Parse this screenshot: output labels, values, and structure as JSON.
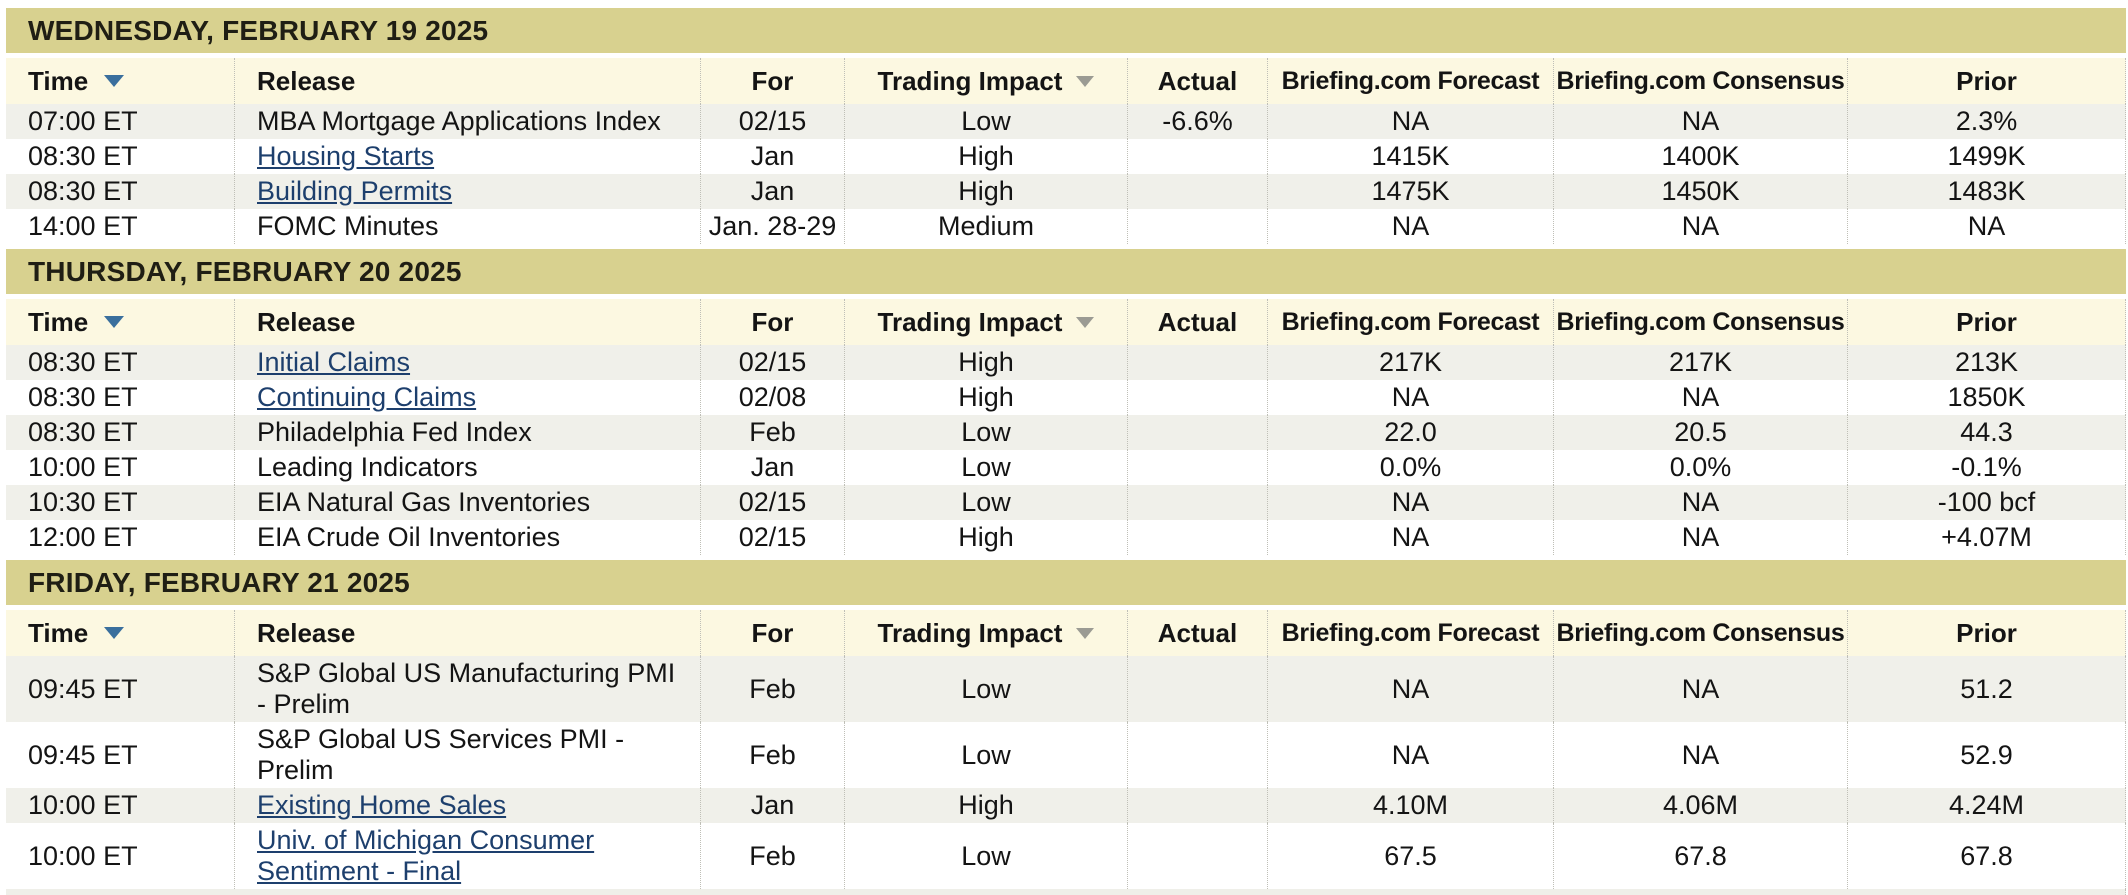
{
  "colors": {
    "date_band_bg": "#d8d18f",
    "header_row_bg": "#fcf8e1",
    "row_alt_bg": "#f0f0ea",
    "row_bg": "#ffffff",
    "text": "#141414",
    "link": "#1d3f6d",
    "time_sort_arrow": "#3a6f9d",
    "impact_sort_arrow": "#9b9b93",
    "column_divider": "#bfbfb7"
  },
  "icons": {
    "time_sort": "down-triangle",
    "impact_sort": "down-triangle"
  },
  "table": {
    "columns": [
      {
        "key": "time",
        "label": "Time",
        "sortable": true,
        "arrow": "blue"
      },
      {
        "key": "release",
        "label": "Release",
        "sortable": false
      },
      {
        "key": "for",
        "label": "For",
        "sortable": false
      },
      {
        "key": "impact",
        "label": "Trading Impact",
        "sortable": true,
        "arrow": "gray"
      },
      {
        "key": "actual",
        "label": "Actual",
        "sortable": false
      },
      {
        "key": "forecast",
        "label": "Briefing.com Forecast",
        "sortable": false
      },
      {
        "key": "consensus",
        "label": "Briefing.com Consensus",
        "sortable": false
      },
      {
        "key": "prior",
        "label": "Prior",
        "sortable": false
      }
    ],
    "sections": [
      {
        "date_header": "WEDNESDAY, FEBRUARY 19 2025",
        "rows": [
          {
            "time": "07:00 ET",
            "release": "MBA Mortgage Applications Index",
            "link": false,
            "for": "02/15",
            "impact": "Low",
            "actual": "-6.6%",
            "forecast": "NA",
            "consensus": "NA",
            "prior": "2.3%"
          },
          {
            "time": "08:30 ET",
            "release": "Housing Starts",
            "link": true,
            "for": "Jan",
            "impact": "High",
            "actual": "",
            "forecast": "1415K",
            "consensus": "1400K",
            "prior": "1499K"
          },
          {
            "time": "08:30 ET",
            "release": "Building Permits",
            "link": true,
            "for": "Jan",
            "impact": "High",
            "actual": "",
            "forecast": "1475K",
            "consensus": "1450K",
            "prior": "1483K"
          },
          {
            "time": "14:00 ET",
            "release": "FOMC Minutes",
            "link": false,
            "for": "Jan. 28-29",
            "impact": "Medium",
            "actual": "",
            "forecast": "NA",
            "consensus": "NA",
            "prior": "NA"
          }
        ]
      },
      {
        "date_header": "THURSDAY, FEBRUARY 20 2025",
        "rows": [
          {
            "time": "08:30 ET",
            "release": "Initial Claims",
            "link": true,
            "for": "02/15",
            "impact": "High",
            "actual": "",
            "forecast": "217K",
            "consensus": "217K",
            "prior": "213K"
          },
          {
            "time": "08:30 ET",
            "release": "Continuing Claims",
            "link": true,
            "for": "02/08",
            "impact": "High",
            "actual": "",
            "forecast": "NA",
            "consensus": "NA",
            "prior": "1850K"
          },
          {
            "time": "08:30 ET",
            "release": "Philadelphia Fed Index",
            "link": false,
            "for": "Feb",
            "impact": "Low",
            "actual": "",
            "forecast": "22.0",
            "consensus": "20.5",
            "prior": "44.3"
          },
          {
            "time": "10:00 ET",
            "release": "Leading Indicators",
            "link": false,
            "for": "Jan",
            "impact": "Low",
            "actual": "",
            "forecast": "0.0%",
            "consensus": "0.0%",
            "prior": "-0.1%"
          },
          {
            "time": "10:30 ET",
            "release": "EIA Natural Gas Inventories",
            "link": false,
            "for": "02/15",
            "impact": "Low",
            "actual": "",
            "forecast": "NA",
            "consensus": "NA",
            "prior": "-100 bcf"
          },
          {
            "time": "12:00 ET",
            "release": "EIA Crude Oil Inventories",
            "link": false,
            "for": "02/15",
            "impact": "High",
            "actual": "",
            "forecast": "NA",
            "consensus": "NA",
            "prior": "+4.07M"
          }
        ]
      },
      {
        "date_header": "FRIDAY, FEBRUARY 21 2025",
        "rows": [
          {
            "time": "09:45 ET",
            "release": "S&P Global US Manufacturing PMI - Prelim",
            "link": false,
            "for": "Feb",
            "impact": "Low",
            "actual": "",
            "forecast": "NA",
            "consensus": "NA",
            "prior": "51.2"
          },
          {
            "time": "09:45 ET",
            "release": "S&P Global US Services PMI - Prelim",
            "link": false,
            "for": "Feb",
            "impact": "Low",
            "actual": "",
            "forecast": "NA",
            "consensus": "NA",
            "prior": "52.9"
          },
          {
            "time": "10:00 ET",
            "release": "Existing Home Sales",
            "link": true,
            "for": "Jan",
            "impact": "High",
            "actual": "",
            "forecast": "4.10M",
            "consensus": "4.06M",
            "prior": "4.24M"
          },
          {
            "time": "10:00 ET",
            "release": "Univ. of Michigan Consumer Sentiment - Final",
            "link": true,
            "for": "Feb",
            "impact": "Low",
            "actual": "",
            "forecast": "67.5",
            "consensus": "67.8",
            "prior": "67.8"
          }
        ]
      }
    ]
  }
}
